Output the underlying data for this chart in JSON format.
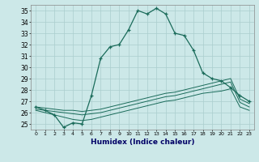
{
  "xlabel": "Humidex (Indice chaleur)",
  "bg_color": "#cce8e8",
  "grid_color": "#aacece",
  "line_color": "#1a6b5a",
  "xlim": [
    -0.5,
    23.5
  ],
  "ylim": [
    24.5,
    35.5
  ],
  "yticks": [
    25,
    26,
    27,
    28,
    29,
    30,
    31,
    32,
    33,
    34,
    35
  ],
  "xticks": [
    0,
    1,
    2,
    3,
    4,
    5,
    6,
    7,
    8,
    9,
    10,
    11,
    12,
    13,
    14,
    15,
    16,
    17,
    18,
    19,
    20,
    21,
    22,
    23
  ],
  "line1_x": [
    0,
    1,
    2,
    3,
    4,
    5,
    6,
    7,
    8,
    9,
    10,
    11,
    12,
    13,
    14,
    15,
    16,
    17,
    18,
    19,
    20,
    21,
    22,
    23
  ],
  "line1_y": [
    26.5,
    26.2,
    25.8,
    24.7,
    25.1,
    25.0,
    27.5,
    30.8,
    31.8,
    32.0,
    33.3,
    35.0,
    34.7,
    35.2,
    34.7,
    33.0,
    32.8,
    31.5,
    29.5,
    29.0,
    28.8,
    28.2,
    27.5,
    27.0
  ],
  "line2_x": [
    0,
    1,
    2,
    3,
    4,
    5,
    6,
    7,
    8,
    9,
    10,
    11,
    12,
    13,
    14,
    15,
    16,
    17,
    18,
    19,
    20,
    21,
    22,
    23
  ],
  "line2_y": [
    26.5,
    26.4,
    26.3,
    26.2,
    26.2,
    26.1,
    26.2,
    26.3,
    26.5,
    26.7,
    26.9,
    27.1,
    27.3,
    27.5,
    27.7,
    27.8,
    28.0,
    28.2,
    28.4,
    28.6,
    28.8,
    29.0,
    27.2,
    26.8
  ],
  "line3_x": [
    0,
    1,
    2,
    3,
    4,
    5,
    6,
    7,
    8,
    9,
    10,
    11,
    12,
    13,
    14,
    15,
    16,
    17,
    18,
    19,
    20,
    21,
    22,
    23
  ],
  "line3_y": [
    26.3,
    26.2,
    26.1,
    26.0,
    25.9,
    25.8,
    25.9,
    26.0,
    26.2,
    26.4,
    26.6,
    26.8,
    27.0,
    27.2,
    27.4,
    27.5,
    27.7,
    27.9,
    28.1,
    28.3,
    28.5,
    28.7,
    26.9,
    26.5
  ],
  "line4_x": [
    0,
    1,
    2,
    3,
    4,
    5,
    6,
    7,
    8,
    9,
    10,
    11,
    12,
    13,
    14,
    15,
    16,
    17,
    18,
    19,
    20,
    21,
    22,
    23
  ],
  "line4_y": [
    26.2,
    26.0,
    25.8,
    25.6,
    25.4,
    25.3,
    25.4,
    25.6,
    25.8,
    26.0,
    26.2,
    26.4,
    26.6,
    26.8,
    27.0,
    27.1,
    27.3,
    27.5,
    27.7,
    27.8,
    27.9,
    28.1,
    26.5,
    26.2
  ]
}
